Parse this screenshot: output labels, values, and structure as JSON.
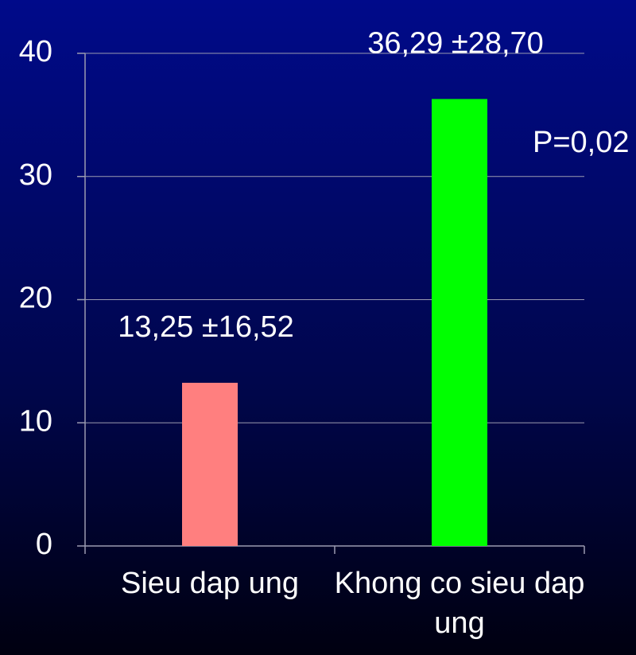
{
  "chart_data": {
    "type": "bar",
    "categories": [
      "Sieu dap ung",
      "Khong co sieu dap ung"
    ],
    "values": [
      13.25,
      36.29
    ],
    "value_labels": [
      "13,25 ±16,52",
      "36,29 ±28,70"
    ],
    "colors": [
      "#ff7f7f",
      "#00ff00"
    ],
    "ylim": [
      0,
      40
    ],
    "yticks": [
      0,
      10,
      20,
      30,
      40
    ],
    "grid": true,
    "annotation": "P=0,02"
  }
}
